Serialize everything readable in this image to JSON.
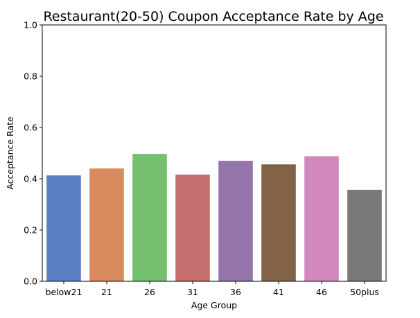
{
  "chart_data": {
    "type": "bar",
    "title": "Restaurant(20-50) Coupon Acceptance Rate by Age",
    "xlabel": "Age Group",
    "ylabel": "Acceptance Rate",
    "ylim": [
      0,
      1.0
    ],
    "yticks": [
      "0.0",
      "0.2",
      "0.4",
      "0.6",
      "0.8",
      "1.0"
    ],
    "categories": [
      "below21",
      "21",
      "26",
      "31",
      "36",
      "41",
      "46",
      "50plus"
    ],
    "values": [
      0.413,
      0.44,
      0.497,
      0.416,
      0.47,
      0.456,
      0.488,
      0.357
    ],
    "colors": [
      "#5b7fc4",
      "#d98b5f",
      "#74c06f",
      "#c56f6e",
      "#9475ac",
      "#826346",
      "#d189bd",
      "#797979"
    ],
    "grid": false,
    "legend": "none"
  }
}
